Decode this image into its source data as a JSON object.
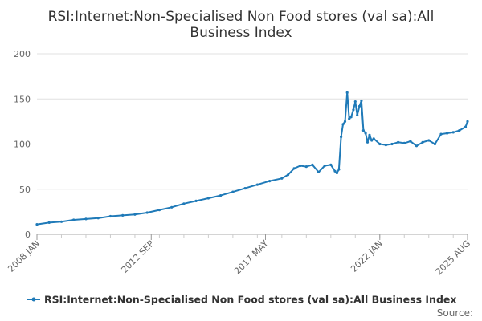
{
  "chart_data": {
    "type": "line",
    "title": "RSI:Internet:Non-Specialised Non Food stores (val sa):All Business Index",
    "title_lines": [
      "RSI:Internet:Non-Specialised Non Food stores (val sa):All",
      "Business Index"
    ],
    "xlabel": "",
    "ylabel": "",
    "ylim": [
      0,
      200
    ],
    "yticks": [
      "0",
      "50",
      "100",
      "150",
      "200"
    ],
    "xticks": [
      {
        "label": "2008 JAN",
        "t": 2008.0
      },
      {
        "label": "2012 SEP",
        "t": 2012.667
      },
      {
        "label": "2017 MAY",
        "t": 2017.333
      },
      {
        "label": "2022 JAN",
        "t": 2022.0
      },
      {
        "label": "2025 AUG",
        "t": 2025.583
      }
    ],
    "grid": true,
    "legend_position": "bottom",
    "color": "#1f7ab8",
    "series": [
      {
        "name": "RSI:Internet:Non-Specialised Non Food stores (val sa):All Business Index",
        "x": [
          2008.0,
          2008.5,
          2009.0,
          2009.5,
          2010.0,
          2010.5,
          2011.0,
          2011.5,
          2012.0,
          2012.5,
          2013.0,
          2013.5,
          2014.0,
          2014.5,
          2015.0,
          2015.5,
          2016.0,
          2016.5,
          2017.0,
          2017.5,
          2018.0,
          2018.25,
          2018.5,
          2018.75,
          2019.0,
          2019.25,
          2019.5,
          2019.75,
          2020.0,
          2020.17,
          2020.25,
          2020.33,
          2020.42,
          2020.5,
          2020.58,
          2020.67,
          2020.75,
          2020.83,
          2020.92,
          2021.0,
          2021.08,
          2021.17,
          2021.25,
          2021.33,
          2021.42,
          2021.5,
          2021.58,
          2021.67,
          2021.75,
          2022.0,
          2022.25,
          2022.5,
          2022.75,
          2023.0,
          2023.25,
          2023.5,
          2023.75,
          2024.0,
          2024.25,
          2024.5,
          2024.75,
          2025.0,
          2025.25,
          2025.5,
          2025.583
        ],
        "y": [
          11,
          13,
          14,
          16,
          17,
          18,
          20,
          21,
          22,
          24,
          27,
          30,
          34,
          37,
          40,
          43,
          47,
          51,
          55,
          59,
          62,
          66,
          73,
          76,
          75,
          77,
          69,
          76,
          77,
          70,
          68,
          72,
          108,
          122,
          125,
          157,
          128,
          130,
          138,
          147,
          132,
          142,
          148,
          115,
          112,
          102,
          110,
          104,
          106,
          100,
          99,
          100,
          102,
          101,
          103,
          98,
          102,
          104,
          100,
          111,
          112,
          113,
          115,
          119,
          125
        ]
      }
    ]
  },
  "legend": {
    "label": "RSI:Internet:Non-Specialised Non Food stores (val sa):All Business Index"
  },
  "source_label": "Source:"
}
